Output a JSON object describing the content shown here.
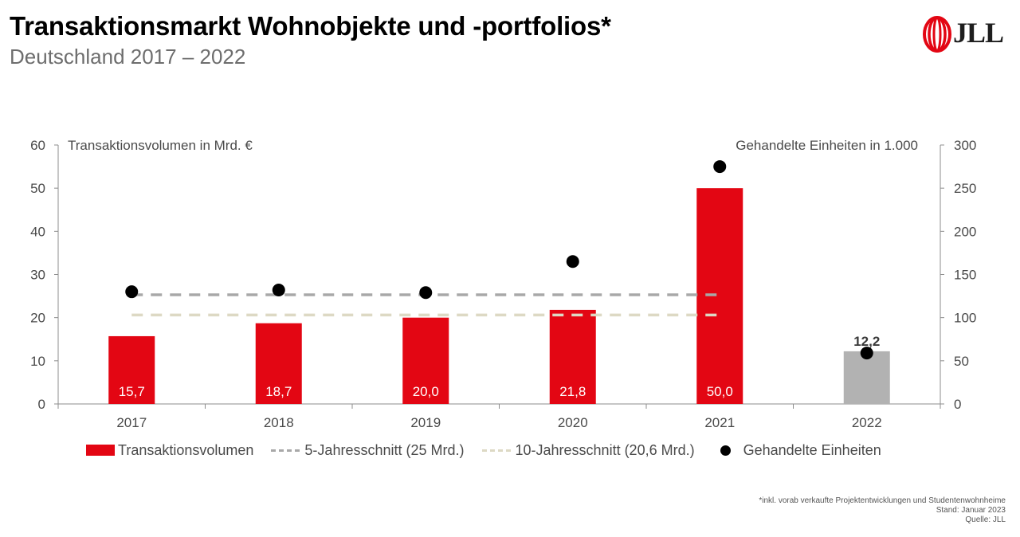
{
  "header": {
    "title": "Transaktionsmarkt Wohnobjekte und -portfolios*",
    "subtitle": "Deutschland 2017 – 2022",
    "logo_text": "JLL"
  },
  "colors": {
    "bar_main": "#e30613",
    "bar_last": "#b2b2b2",
    "avg5": "#a8a8a8",
    "avg10": "#ddd9c4",
    "dots": "#000000",
    "logo_red": "#e30613"
  },
  "chart_data": {
    "type": "bar",
    "categories": [
      "2017",
      "2018",
      "2019",
      "2020",
      "2021",
      "2022"
    ],
    "series": [
      {
        "name": "Transaktionsvolumen",
        "axis": "left",
        "type": "bar",
        "values": [
          15.7,
          18.7,
          20.0,
          21.8,
          50.0,
          12.2
        ],
        "labels": [
          "15,7",
          "18,7",
          "20,0",
          "21,8",
          "50,0",
          "12,2"
        ],
        "highlight_last": true
      },
      {
        "name": "5-Jahresschnitt (25 Mrd.)",
        "axis": "left",
        "type": "line-dashed",
        "value": 25.3,
        "categories_span": [
          "2017",
          "2021"
        ]
      },
      {
        "name": "10-Jahresschnitt (20,6 Mrd.)",
        "axis": "left",
        "type": "line-dashed",
        "value": 20.6,
        "categories_span": [
          "2017",
          "2021"
        ]
      },
      {
        "name": "Gehandelte Einheiten",
        "axis": "right",
        "type": "scatter",
        "values": [
          130,
          132,
          129,
          165,
          275,
          59
        ]
      }
    ],
    "y_left": {
      "label": "Transaktionsvolumen in Mrd. €",
      "min": 0,
      "max": 60,
      "ticks": [
        0,
        10,
        20,
        30,
        40,
        50,
        60
      ]
    },
    "y_right": {
      "label": "Gehandelte Einheiten in 1.000",
      "min": 0,
      "max": 300,
      "ticks": [
        0,
        50,
        100,
        150,
        200,
        250,
        300
      ]
    },
    "grid": false,
    "legend_position": "bottom"
  },
  "footer": {
    "note": "*inkl. vorab verkaufte Projektentwicklungen und Studentenwohnheime",
    "date": "Stand: Januar 2023",
    "source": "Quelle: JLL"
  }
}
